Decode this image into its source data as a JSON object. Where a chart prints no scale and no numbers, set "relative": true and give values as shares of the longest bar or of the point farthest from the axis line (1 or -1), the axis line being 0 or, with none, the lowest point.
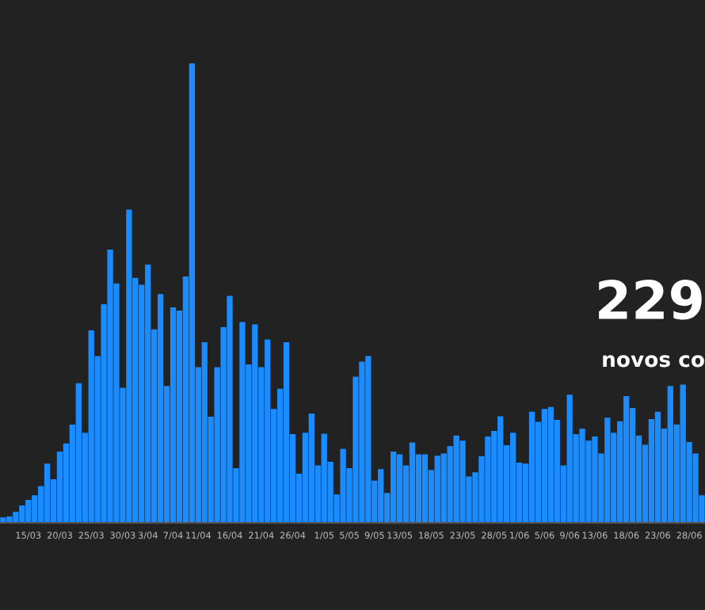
{
  "chart_data": {
    "type": "bar",
    "relative": true,
    "color": "#1a8cff",
    "grid": false,
    "legend": false,
    "categories": [
      null,
      null,
      null,
      null,
      "15/03",
      null,
      null,
      null,
      null,
      "20/03",
      null,
      null,
      null,
      null,
      "25/03",
      null,
      null,
      null,
      null,
      "30/03",
      null,
      null,
      null,
      "3/04",
      null,
      null,
      null,
      "7/04",
      null,
      null,
      null,
      "11/04",
      null,
      null,
      null,
      null,
      "16/04",
      null,
      null,
      null,
      null,
      "21/04",
      null,
      null,
      null,
      null,
      "26/04",
      null,
      null,
      null,
      null,
      "1/05",
      null,
      null,
      null,
      "5/05",
      null,
      null,
      null,
      "9/05",
      null,
      null,
      null,
      "13/05",
      null,
      null,
      null,
      null,
      "18/05",
      null,
      null,
      null,
      null,
      "23/05",
      null,
      null,
      null,
      null,
      "28/05",
      null,
      null,
      null,
      "1/06",
      null,
      null,
      null,
      "5/06",
      null,
      null,
      null,
      "9/06",
      null,
      null,
      null,
      "13/06",
      null,
      null,
      null,
      null,
      "18/06",
      null,
      null,
      null,
      null,
      "23/06",
      null,
      null,
      null,
      null,
      "28/06",
      null,
      null
    ],
    "values": [
      0.012,
      0.014,
      0.024,
      0.038,
      0.05,
      0.06,
      0.08,
      0.129,
      0.095,
      0.155,
      0.173,
      0.214,
      0.304,
      0.196,
      0.419,
      0.363,
      0.476,
      0.595,
      0.521,
      0.294,
      0.682,
      0.533,
      0.518,
      0.562,
      0.421,
      0.498,
      0.298,
      0.469,
      0.462,
      0.536,
      1,
      0.339,
      0.393,
      0.231,
      0.339,
      0.426,
      0.494,
      0.119,
      0.437,
      0.345,
      0.432,
      0.339,
      0.399,
      0.248,
      0.292,
      0.393,
      0.193,
      0.107,
      0.196,
      0.238,
      0.125,
      0.194,
      0.133,
      0.062,
      0.161,
      0.119,
      0.318,
      0.351,
      0.363,
      0.092,
      0.117,
      0.065,
      0.155,
      0.149,
      0.125,
      0.175,
      0.149,
      0.149,
      0.115,
      0.146,
      0.151,
      0.167,
      0.19,
      0.179,
      0.101,
      0.11,
      0.145,
      0.188,
      0.2,
      0.232,
      0.169,
      0.196,
      0.131,
      0.129,
      0.242,
      0.22,
      0.248,
      0.252,
      0.224,
      0.125,
      0.279,
      0.193,
      0.205,
      0.179,
      0.188,
      0.151,
      0.229,
      0.196,
      0.221,
      0.276,
      0.25,
      0.19,
      0.17,
      0.226,
      0.242,
      0.205,
      0.298,
      0.214,
      0.301,
      0.176,
      0.151,
      0.06
    ],
    "annotations": [
      "229",
      "novos co"
    ]
  }
}
